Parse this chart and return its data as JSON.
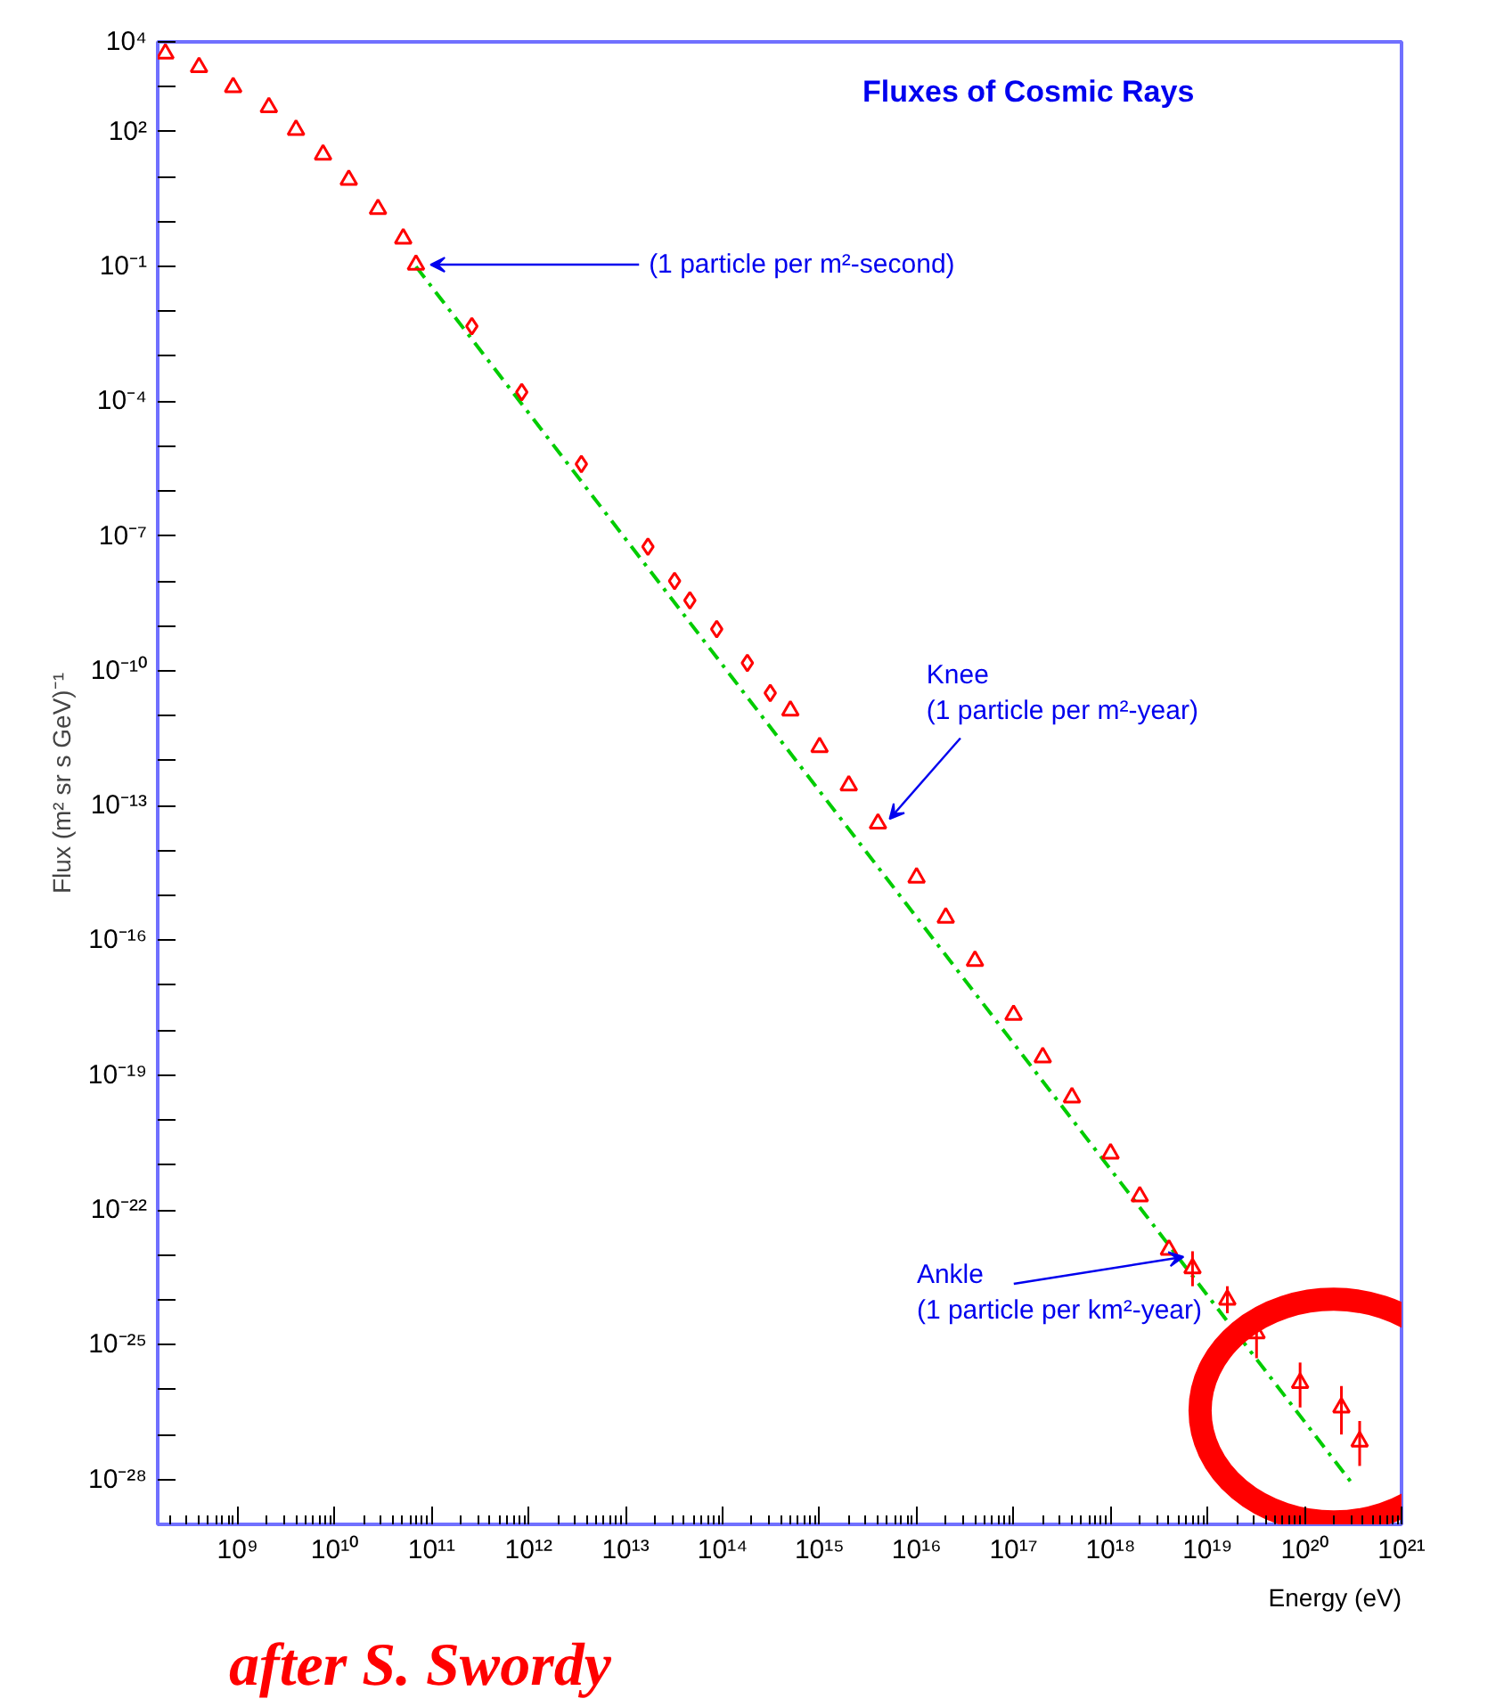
{
  "chart_data": {
    "type": "scatter",
    "title": "Fluxes of Cosmic Rays",
    "xlabel": "Energy (eV)",
    "ylabel": "Flux (m² sr s GeV)⁻¹",
    "log": "xy",
    "grid": false,
    "xlim": [
      150000000.0,
      1e+21
    ],
    "ylim": [
      1e-29,
      10000.0
    ],
    "xticks": [
      {
        "value": 1000000000.0,
        "label": "10⁹"
      },
      {
        "value": 10000000000.0,
        "label": "10¹⁰"
      },
      {
        "value": 100000000000.0,
        "label": "10¹¹"
      },
      {
        "value": 1000000000000.0,
        "label": "10¹²"
      },
      {
        "value": 10000000000000.0,
        "label": "10¹³"
      },
      {
        "value": 100000000000000.0,
        "label": "10¹⁴"
      },
      {
        "value": 1000000000000000.0,
        "label": "10¹⁵"
      },
      {
        "value": 1e+16,
        "label": "10¹⁶"
      },
      {
        "value": 1e+17,
        "label": "10¹⁷"
      },
      {
        "value": 1e+18,
        "label": "10¹⁸"
      },
      {
        "value": 1e+19,
        "label": "10¹⁹"
      },
      {
        "value": 1e+20,
        "label": "10²⁰"
      },
      {
        "value": 1e+21,
        "label": "10²¹"
      }
    ],
    "yticks": [
      {
        "value": 10000.0,
        "label": "10⁴"
      },
      {
        "value": 1000.0,
        "label": null
      },
      {
        "value": 100.0,
        "label": "10²"
      },
      {
        "value": 10.0,
        "label": null
      },
      {
        "value": 1,
        "label": null
      },
      {
        "value": 0.1,
        "label": "10⁻¹"
      },
      {
        "value": 0.01,
        "label": null
      },
      {
        "value": 0.001,
        "label": null
      },
      {
        "value": 0.0001,
        "label": "10⁻⁴"
      },
      {
        "value": 1e-05,
        "label": null
      },
      {
        "value": 1e-06,
        "label": null
      },
      {
        "value": 1e-07,
        "label": "10⁻⁷"
      },
      {
        "value": 1e-08,
        "label": null
      },
      {
        "value": 1e-09,
        "label": null
      },
      {
        "value": 1e-10,
        "label": "10⁻¹⁰"
      },
      {
        "value": 1e-11,
        "label": null
      },
      {
        "value": 1e-12,
        "label": null
      },
      {
        "value": 1e-13,
        "label": "10⁻¹³"
      },
      {
        "value": 1e-14,
        "label": null
      },
      {
        "value": 1e-15,
        "label": null
      },
      {
        "value": 1e-16,
        "label": "10⁻¹⁶"
      },
      {
        "value": 1e-17,
        "label": null
      },
      {
        "value": 1e-18,
        "label": null
      },
      {
        "value": 1e-19,
        "label": "10⁻¹⁹"
      },
      {
        "value": 1e-20,
        "label": null
      },
      {
        "value": 1e-21,
        "label": null
      },
      {
        "value": 1e-22,
        "label": "10⁻²²"
      },
      {
        "value": 1e-23,
        "label": null
      },
      {
        "value": 1e-24,
        "label": null
      },
      {
        "value": 1e-25,
        "label": "10⁻²⁵"
      },
      {
        "value": 1e-26,
        "label": null
      },
      {
        "value": 1e-27,
        "label": null
      },
      {
        "value": 1e-28,
        "label": "10⁻²⁸"
      }
    ],
    "series": [
      {
        "color": "#ff0000",
        "marker": "triangle",
        "x": [
          180000000.0,
          400000000.0,
          900000000.0,
          2100000000.0,
          4000000000.0,
          7600000000.0,
          14000000000.0,
          28000000000.0,
          51000000000.0,
          69000000000.0
        ],
        "values": [
          5500,
          2750,
          980,
          350,
          110,
          31,
          8.5,
          1.9,
          0.42,
          0.11
        ]
      },
      {
        "color": "#ff0000",
        "marker": "diamond",
        "x": [
          260000000000.0,
          850000000000.0,
          3500000000000.0,
          17000000000000.0,
          32000000000000.0,
          46000000000000.0,
          87000000000000.0,
          180000000000000.0,
          310000000000000.0
        ],
        "values": [
          0.0047,
          0.00016,
          4e-06,
          5.8e-08,
          1e-08,
          3.7e-09,
          8.5e-10,
          1.5e-10,
          3.2e-11
        ]
      },
      {
        "color": "#ff0000",
        "marker": "triangle",
        "x": [
          500000000000000.0,
          1000000000000000.0,
          2000000000000000.0,
          4000000000000000.0,
          1e+16,
          2e+16,
          4e+16,
          1e+17,
          2e+17,
          4e+17,
          1e+18,
          2e+18,
          4e+18,
          7e+18,
          1.6e+19,
          3.2e+19,
          9e+19,
          2.4e+20,
          3.7e+20
        ],
        "values": [
          1.3e-11,
          2e-12,
          2.8e-13,
          4e-14,
          2.5e-15,
          3.2e-16,
          3.5e-17,
          2.2e-18,
          2.5e-19,
          3.2e-20,
          1.8e-21,
          2e-22,
          1.3e-23,
          5e-24,
          1e-24,
          1.8e-25,
          1.4e-26,
          4e-27,
          7e-28
        ],
        "errors": [
          null,
          null,
          null,
          null,
          null,
          null,
          null,
          null,
          null,
          null,
          null,
          null,
          null,
          [
            2e-24,
            1.2e-23
          ],
          [
            5e-25,
            2e-24
          ],
          [
            5e-26,
            6e-25
          ],
          [
            4e-27,
            4e-26
          ],
          [
            1e-27,
            1.2e-26
          ],
          [
            2e-28,
            2e-27
          ]
        ]
      },
      {
        "type": "line",
        "color": "#00cc00",
        "line_style": "dashed",
        "x": [
          69000000000.0,
          3.2e+20
        ],
        "values": [
          0.1,
          7.4e-29
        ]
      }
    ],
    "annotations": [
      {
        "text": "(1 particle per m²-second)",
        "x": 69000000000.0,
        "y": 0.11
      },
      {
        "text": "Knee\n(1 particle per m²-year)",
        "x": 4000000000000000.0,
        "y": 4e-14
      },
      {
        "text": "Ankle\n(1 particle per km²-year)",
        "x": 4e+18,
        "y": 9e-24
      },
      "after S. Swordy"
    ]
  }
}
